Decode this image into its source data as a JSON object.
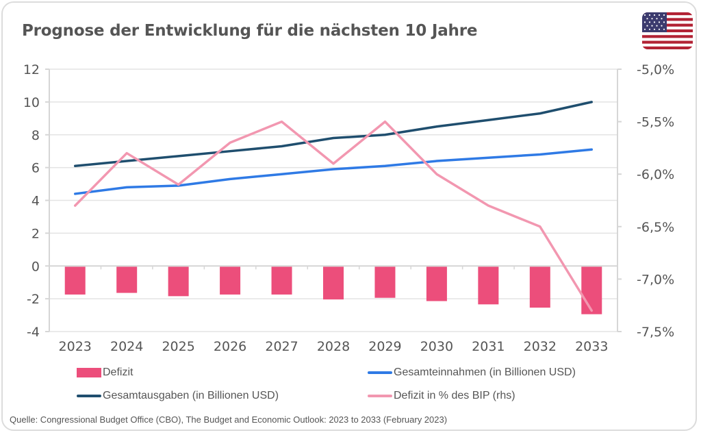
{
  "header": {
    "title": "Prognose der Entwicklung für die nächsten 10 Jahre",
    "flag_icon": "us-flag-icon"
  },
  "colors": {
    "deficit_bar": "#ec4e7b",
    "revenue_line": "#2f7ae5",
    "spending_line": "#1f4e6e",
    "deficit_pct_line": "#f297b0",
    "grid": "#e3e3e3",
    "axis": "#d6d6d6",
    "text": "#555555"
  },
  "chart_data": {
    "type": "bar+line",
    "title": "Prognose der Entwicklung für die nächsten 10 Jahre",
    "categories": [
      "2023",
      "2024",
      "2025",
      "2026",
      "2027",
      "2028",
      "2029",
      "2030",
      "2031",
      "2032",
      "2033"
    ],
    "y_left": {
      "min": -4,
      "max": 12,
      "step": 2,
      "ticks": [
        "12",
        "10",
        "8",
        "6",
        "4",
        "2",
        "0",
        "-2",
        "-4"
      ]
    },
    "y_right": {
      "min": -7.5,
      "max": -5.0,
      "step": 0.5,
      "ticks": [
        "-5,0%",
        "-5,5%",
        "-6,0%",
        "-6,5%",
        "-7,0%",
        "-7,5%"
      ]
    },
    "grid": true,
    "legend_position": "bottom",
    "series": [
      {
        "name": "Defizit",
        "type": "bar",
        "axis": "left",
        "values": [
          -1.7,
          -1.6,
          -1.8,
          -1.7,
          -1.7,
          -2.0,
          -1.9,
          -2.1,
          -2.3,
          -2.5,
          -2.9
        ]
      },
      {
        "name": "Gesamteinnahmen (in Billionen USD)",
        "type": "line",
        "axis": "left",
        "values": [
          4.4,
          4.8,
          4.9,
          5.3,
          5.6,
          5.9,
          6.1,
          6.4,
          6.6,
          6.8,
          7.1
        ]
      },
      {
        "name": "Gesamtausgaben (in Billionen USD)",
        "type": "line",
        "axis": "left",
        "values": [
          6.1,
          6.4,
          6.7,
          7.0,
          7.3,
          7.8,
          8.0,
          8.5,
          8.9,
          9.3,
          10.0
        ]
      },
      {
        "name": "Defizit in % des BIP (rhs)",
        "type": "line",
        "axis": "right",
        "values": [
          -6.3,
          -5.8,
          -6.1,
          -5.7,
          -5.5,
          -5.9,
          -5.5,
          -6.0,
          -6.3,
          -6.5,
          -7.3
        ]
      }
    ]
  },
  "legend": {
    "items": [
      {
        "label": "Defizit",
        "kind": "bar"
      },
      {
        "label": "Gesamteinnahmen (in Billionen USD)",
        "kind": "line"
      },
      {
        "label": "Gesamtausgaben (in Billionen USD)",
        "kind": "line"
      },
      {
        "label": "Defizit in % des BIP (rhs)",
        "kind": "line"
      }
    ]
  },
  "footer": {
    "source": "Quelle: Congressional Budget Office (CBO), The Budget and Economic Outlook: 2023 to 2033 (February 2023)"
  }
}
